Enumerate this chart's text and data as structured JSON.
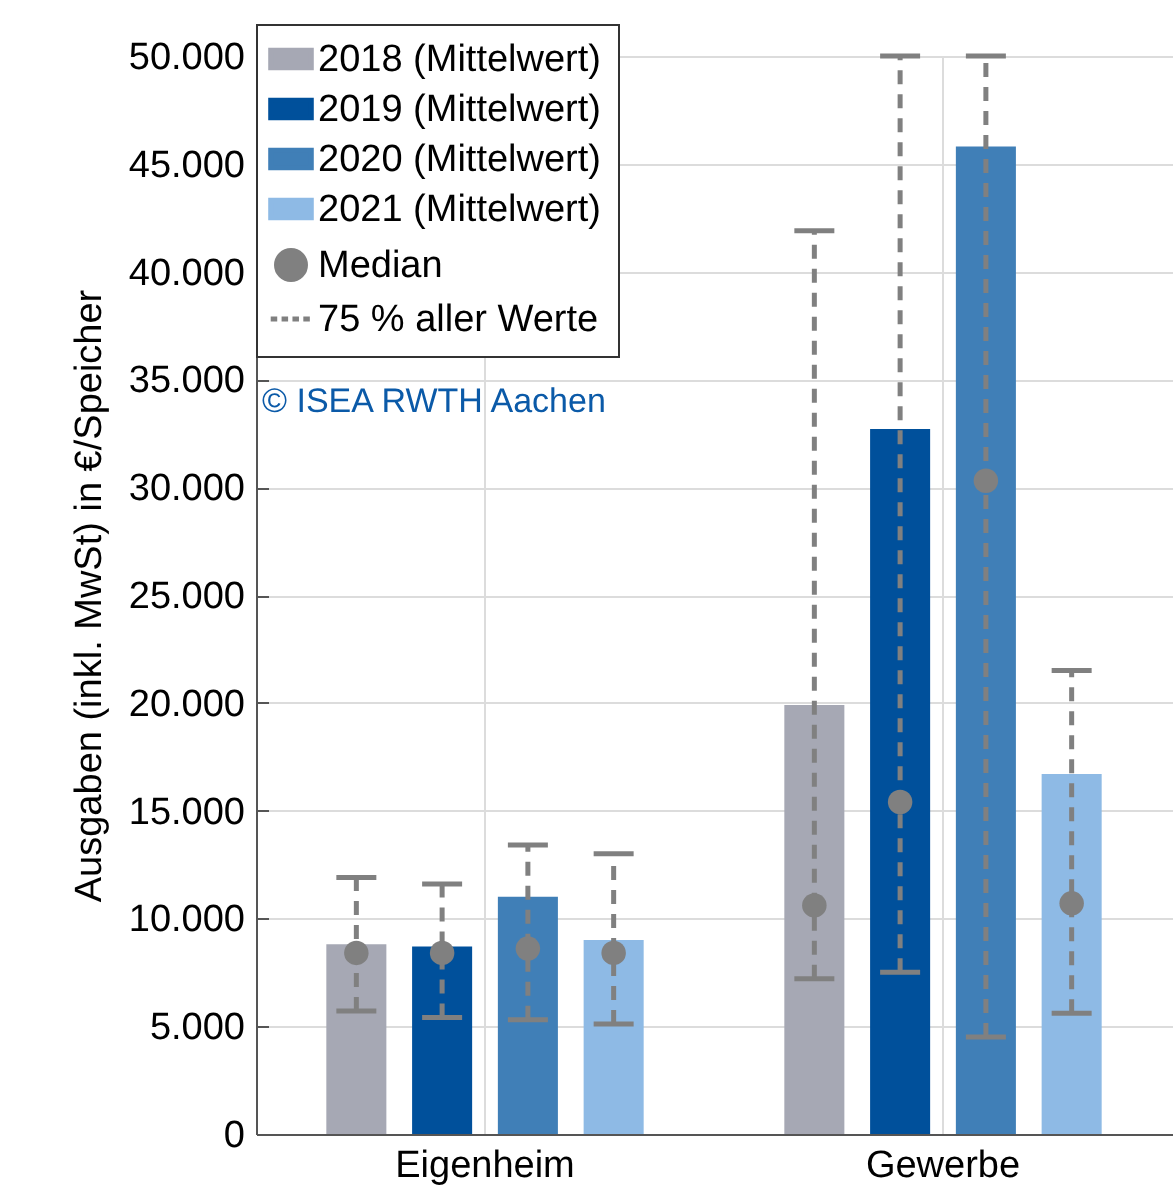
{
  "chart_data": {
    "type": "bar",
    "ylabel": "Ausgaben (inkl. MwSt) in €/Speicher",
    "categories": [
      "Eigenheim",
      "Gewerbe"
    ],
    "series": [
      {
        "name": "2018 (Mittelwert)",
        "color": "#a6a8b4",
        "values": [
          8800,
          19900
        ],
        "errors": [
          [
            5700,
            11900
          ],
          [
            7200,
            41900
          ]
        ]
      },
      {
        "name": "2019 (Mittelwert)",
        "color": "#00509b",
        "values": [
          8700,
          32700
        ],
        "errors": [
          [
            5400,
            11600
          ],
          [
            7500,
            50000
          ]
        ]
      },
      {
        "name": "2020 (Mittelwert)",
        "color": "#407fb7",
        "values": [
          11000,
          45800
        ],
        "errors": [
          [
            5300,
            13400
          ],
          [
            4500,
            50000
          ]
        ]
      },
      {
        "name": "2021 (Mittelwert)",
        "color": "#8ebae5",
        "values": [
          9000,
          16700
        ],
        "errors": [
          [
            5100,
            13000
          ],
          [
            5600,
            21500
          ]
        ]
      },
      {
        "name": "Median",
        "type": "scatter",
        "color": "#808080",
        "x": [
          "Eigenheim",
          "Eigenheim",
          "Eigenheim",
          "Eigenheim",
          "Gewerbe",
          "Gewerbe",
          "Gewerbe",
          "Gewerbe"
        ],
        "values": [
          8400,
          8400,
          8600,
          8400,
          10600,
          15400,
          30300,
          10700
        ]
      }
    ],
    "ylim": [
      0,
      50000
    ],
    "yticks": [
      {
        "value": 0,
        "label": "0"
      },
      {
        "value": 5000,
        "label": "5.000"
      },
      {
        "value": 10000,
        "label": "10.000"
      },
      {
        "value": 15000,
        "label": "15.000"
      },
      {
        "value": 20000,
        "label": "20.000"
      },
      {
        "value": 25000,
        "label": "25.000"
      },
      {
        "value": 30000,
        "label": "30.000"
      },
      {
        "value": 35000,
        "label": "35.000"
      },
      {
        "value": 40000,
        "label": "40.000"
      },
      {
        "value": 45000,
        "label": "45.000"
      },
      {
        "value": 50000,
        "label": "50.000"
      }
    ],
    "grid": true,
    "legend": "top left",
    "line_style": "dashed",
    "annotations": [
      "75 % aller Werte",
      "© ISEA RWTH Aachen"
    ]
  }
}
